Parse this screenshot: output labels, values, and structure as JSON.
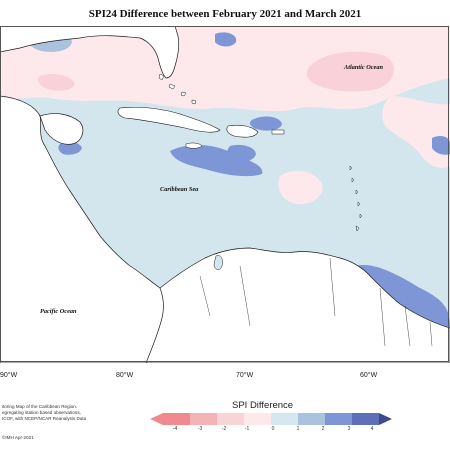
{
  "title": "SPI24 Difference between February 2021 and March 2021",
  "labels": {
    "atlantic": "Atlantic Ocean",
    "caribbean": "Caribbean Sea",
    "pacific": "Pacific Ocean"
  },
  "longitudes": [
    "90°W",
    "80°W",
    "70°W",
    "60°W"
  ],
  "notes": [
    "itoring Map of the Caribbean Region.",
    "egregating station based observations,",
    "ICOF, with NCEP/NCAR Reanalysis Data"
  ],
  "credit": "©IMH Apr-2021",
  "legend": {
    "title": "SPI Difference",
    "ticks": [
      "-4",
      "-3",
      "-2",
      "-1",
      "0",
      "1",
      "2",
      "3",
      "4"
    ],
    "colors": [
      "#f08a8f",
      "#f4b3b6",
      "#f8d4d6",
      "#fde9ea",
      "#d5e8ef",
      "#a9c3dd",
      "#7f96d6",
      "#5d6fb8",
      "#3f4a8a"
    ]
  },
  "colors": {
    "land": "#ffffff",
    "coast": "#1a1a1a",
    "near_zero_positive": "#d3e6ee",
    "near_zero_negative": "#fde9ec",
    "moderate_positive": "#7f96d6",
    "mild_negative": "#f8d2d8"
  }
}
